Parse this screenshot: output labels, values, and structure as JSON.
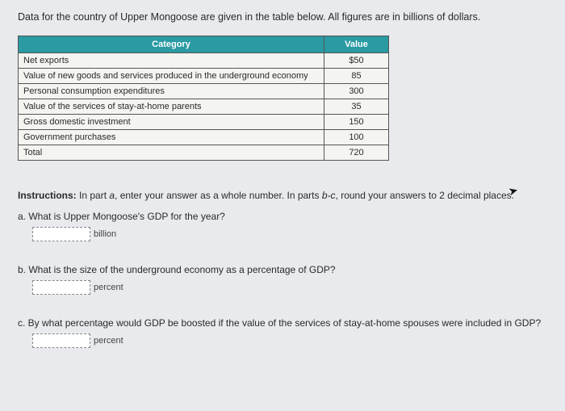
{
  "intro": "Data for the country of Upper Mongoose are given in the table below. All figures are in billions of dollars.",
  "table": {
    "headers": {
      "category": "Category",
      "value": "Value"
    },
    "rows": [
      {
        "label": "Net exports",
        "value": "$50"
      },
      {
        "label": "Value of new goods and services produced in the underground economy",
        "value": "85"
      },
      {
        "label": "Personal consumption expenditures",
        "value": "300"
      },
      {
        "label": "Value of the services of stay-at-home parents",
        "value": "35"
      },
      {
        "label": "Gross domestic investment",
        "value": "150"
      },
      {
        "label": "Government purchases",
        "value": "100"
      },
      {
        "label": "Total",
        "value": "720"
      }
    ]
  },
  "instructions": {
    "prefix": "Instructions:",
    "part1": " In part ",
    "a": "a",
    "part2": ", enter your answer as a whole number. In parts ",
    "bc": "b-c",
    "part3": ", round your answers to 2 decimal places."
  },
  "questions": {
    "a": {
      "text": "a. What is Upper Mongoose's GDP for the year?",
      "unit": "billion"
    },
    "b": {
      "text": "b. What is the size of the underground economy as a percentage of GDP?",
      "unit": "percent"
    },
    "c": {
      "text": "c. By what percentage would GDP be boosted if the value of the services of stay-at-home spouses were included in GDP?",
      "unit": "percent"
    }
  }
}
